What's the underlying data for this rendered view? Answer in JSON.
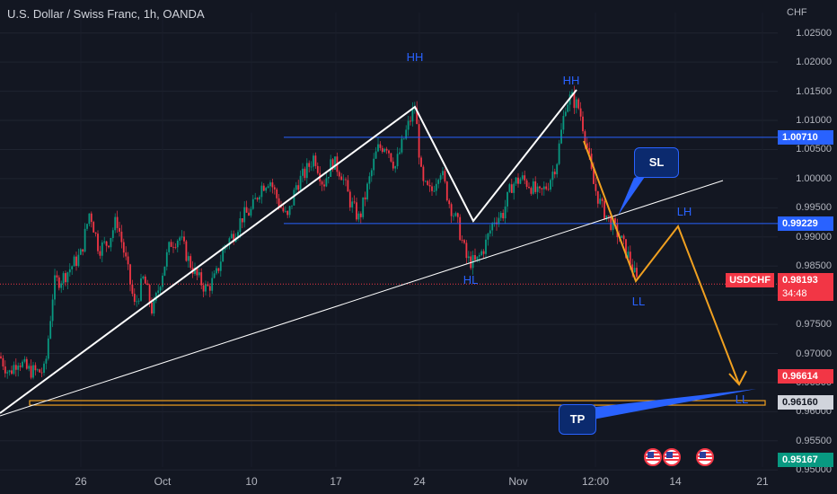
{
  "header": {
    "title": "U.S. Dollar / Swiss Franc, 1h, OANDA",
    "currency_unit": "CHF"
  },
  "chart_data": {
    "type": "candlestick",
    "symbol": "USDCHF",
    "ylim": [
      0.9505,
      1.0285
    ],
    "y_ticks": [
      "1.02500",
      "1.02000",
      "1.01500",
      "1.01000",
      "1.00500",
      "1.00000",
      "0.99500",
      "0.99000",
      "0.98500",
      "0.98000",
      "0.97500",
      "0.97000",
      "0.96500",
      "0.96000",
      "0.95500",
      "0.95000"
    ],
    "x_ticks": [
      "26",
      "Oct",
      "10",
      "17",
      "24",
      "Nov",
      "12:00",
      "14",
      "21"
    ],
    "price_series": [
      [
        0,
        0.9695
      ],
      [
        10,
        0.9665
      ],
      [
        20,
        0.969
      ],
      [
        30,
        0.9672
      ],
      [
        40,
        0.9668
      ],
      [
        50,
        0.967
      ],
      [
        60,
        0.982
      ],
      [
        70,
        0.983
      ],
      [
        80,
        0.985
      ],
      [
        90,
        0.987
      ],
      [
        100,
        0.9945
      ],
      [
        110,
        0.988
      ],
      [
        120,
        0.989
      ],
      [
        130,
        0.993
      ],
      [
        140,
        0.986
      ],
      [
        150,
        0.978
      ],
      [
        160,
        0.983
      ],
      [
        170,
        0.977
      ],
      [
        180,
        0.9835
      ],
      [
        190,
        0.989
      ],
      [
        200,
        0.99
      ],
      [
        210,
        0.986
      ],
      [
        220,
        0.983
      ],
      [
        230,
        0.981
      ],
      [
        240,
        0.983
      ],
      [
        250,
        0.9885
      ],
      [
        260,
        0.9905
      ],
      [
        270,
        0.9935
      ],
      [
        280,
        0.9945
      ],
      [
        290,
        0.9985
      ],
      [
        300,
        1.0
      ],
      [
        310,
        0.996
      ],
      [
        320,
        0.993
      ],
      [
        330,
        0.999
      ],
      [
        340,
        1.001
      ],
      [
        350,
        1.004
      ],
      [
        360,
        0.999
      ],
      [
        370,
        1.003
      ],
      [
        380,
        1.001
      ],
      [
        390,
        0.996
      ],
      [
        400,
        0.993
      ],
      [
        410,
        0.999
      ],
      [
        420,
        1.005
      ],
      [
        430,
        1.006
      ],
      [
        440,
        1.002
      ],
      [
        450,
        1.007
      ],
      [
        462,
        1.0125
      ],
      [
        470,
        0.999
      ],
      [
        480,
        0.9975
      ],
      [
        490,
        1.002
      ],
      [
        500,
        0.996
      ],
      [
        510,
        0.992
      ],
      [
        520,
        0.986
      ],
      [
        530,
        0.9855
      ],
      [
        540,
        0.9885
      ],
      [
        550,
        0.993
      ],
      [
        560,
        0.994
      ],
      [
        570,
        0.999
      ],
      [
        580,
        1.0
      ],
      [
        590,
        0.999
      ],
      [
        600,
        0.997
      ],
      [
        610,
        0.999
      ],
      [
        620,
        1.003
      ],
      [
        630,
        1.013
      ],
      [
        636,
        1.014
      ],
      [
        645,
        1.012
      ],
      [
        652,
        1.007
      ],
      [
        660,
        0.9995
      ],
      [
        670,
        0.995
      ],
      [
        680,
        0.9925
      ],
      [
        690,
        0.99
      ],
      [
        700,
        0.9865
      ],
      [
        710,
        0.982
      ]
    ],
    "horizontal_lines": [
      {
        "value": 1.0071,
        "color": "#2962ff"
      },
      {
        "value": 0.99229,
        "color": "#2962ff"
      },
      {
        "value": 0.9819,
        "color": "#f23645",
        "style": "dotted"
      }
    ],
    "tp_zone": {
      "from": 0.9612,
      "to": 0.9619,
      "color": "#f0a020"
    },
    "price_tags": [
      {
        "value": 1.0071,
        "label": "1.00710",
        "bg": "#2962ff",
        "fg": "#ffffff"
      },
      {
        "value": 0.99229,
        "label": "0.99229",
        "bg": "#2962ff",
        "fg": "#ffffff"
      },
      {
        "value": 0.96614,
        "label": "0.96614",
        "bg": "#f23645",
        "fg": "#ffffff"
      },
      {
        "value": 0.9616,
        "label": "0.96160",
        "bg": "#d1d4dc",
        "fg": "#131722"
      },
      {
        "value": 0.95167,
        "label": "0.95167",
        "bg": "#089981",
        "fg": "#ffffff"
      }
    ],
    "current_price": {
      "symbol_label": "USDCHF",
      "value": 0.98193,
      "label": "0.98193",
      "countdown": "34:48"
    },
    "pattern_labels": [
      "HH",
      "HH",
      "HL",
      "LH",
      "LL",
      "LL"
    ],
    "callouts": {
      "stop_loss": "SL",
      "take_profit": "TP"
    },
    "colors": {
      "up": "#089981",
      "down": "#f23645",
      "background": "#131722",
      "level": "#2962ff",
      "projection": "#f0a020",
      "annotation": "#ffffff"
    }
  }
}
